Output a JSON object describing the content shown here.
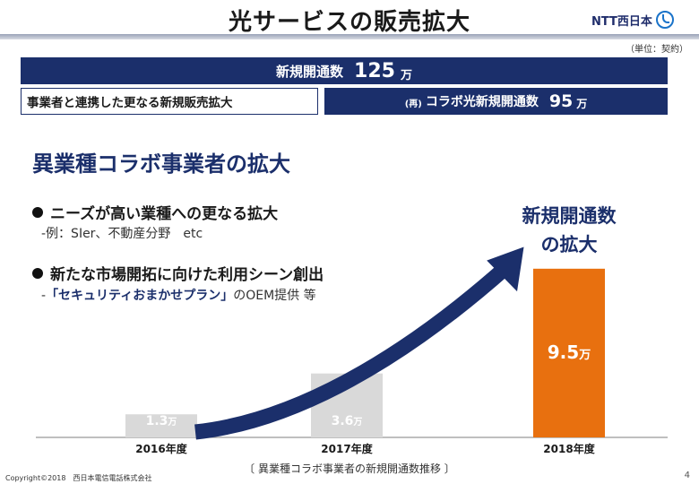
{
  "header": {
    "title": "光サービスの販売拡大",
    "logo_text": "NTT西日本",
    "unit_note": "（単位：契約）"
  },
  "kpi": {
    "total_label": "新規開通数",
    "total_value": "125",
    "total_unit": "万",
    "strategy": "事業者と連携した更なる新規販売拡大",
    "collab_prefix": "(再)",
    "collab_label": "コラボ光新規開通数",
    "collab_value": "95",
    "collab_unit": "万"
  },
  "section": {
    "title": "異業種コラボ事業者の拡大",
    "bullets": [
      {
        "text": "ニーズが高い業種への更なる拡大",
        "sub": "-例：SIer、不動産分野　etc"
      },
      {
        "text": "新たな市場開拓に向けた利用シーン創出",
        "sub_prefix": "-",
        "sub_emph": "「セキュリティおまかせプラン」",
        "sub_suffix": "のOEM提供 等"
      }
    ]
  },
  "callout": {
    "line1": "新規開通数",
    "line2": "の拡大"
  },
  "chart_data": {
    "type": "bar",
    "categories": [
      "2016年度",
      "2017年度",
      "2018年度"
    ],
    "values": [
      1.3,
      3.6,
      9.5
    ],
    "value_labels": [
      "1.3",
      "3.6",
      "9.5"
    ],
    "unit": "万",
    "ylim": [
      0,
      10.5
    ],
    "bar_colors": [
      "#d9d9d9",
      "#d9d9d9",
      "#e8700f"
    ],
    "arrow_color": "#1b2f6b",
    "caption": "〔 異業種コラボ事業者の新規開通数推移 〕"
  },
  "footer": {
    "copyright": "Copyright©2018　西日本電信電話株式会社",
    "page": "4"
  }
}
